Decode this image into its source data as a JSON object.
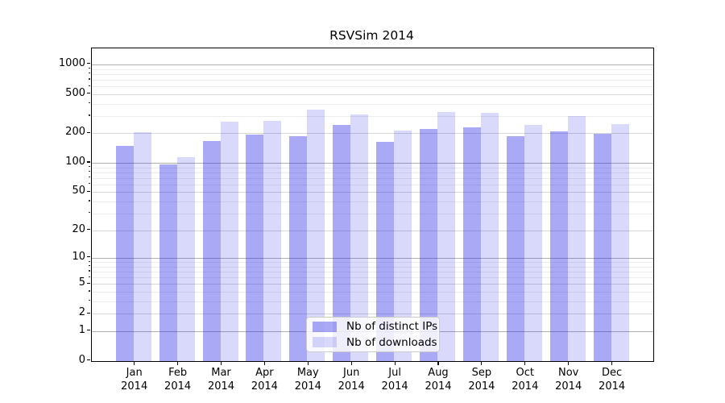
{
  "figure": {
    "title": "RSVSim 2014"
  },
  "chart_data": {
    "type": "bar",
    "title": "RSVSim 2014",
    "categories": [
      "Jan 2014",
      "Feb 2014",
      "Mar 2014",
      "Apr 2014",
      "May 2014",
      "Jun 2014",
      "Jul 2014",
      "Aug 2014",
      "Sep 2014",
      "Oct 2014",
      "Nov 2014",
      "Dec 2014"
    ],
    "series": [
      {
        "name": "Nb of distinct IPs",
        "color": "#aaaaf5",
        "fill": "#1e1ee661",
        "values": [
          150,
          97,
          167,
          194,
          187,
          243,
          164,
          223,
          231,
          188,
          210,
          198
        ]
      },
      {
        "name": "Nb of downloads",
        "color": "#d9d9fa",
        "fill": "#1e1ee62b",
        "values": [
          204,
          115,
          261,
          270,
          348,
          314,
          213,
          329,
          323,
          242,
          298,
          249
        ]
      }
    ],
    "yscale": "log1p",
    "ylim": [
      0,
      1455
    ],
    "y_ticks": [
      0,
      1,
      2,
      5,
      10,
      20,
      50,
      100,
      200,
      500,
      1000
    ],
    "grid": true,
    "legend_position": "lower center",
    "axis_color": "#000000",
    "grid_color_decade": "#b0b0b0",
    "grid_color_labeled": "#d7d7d7",
    "grid_color_minor": "#ececec"
  }
}
